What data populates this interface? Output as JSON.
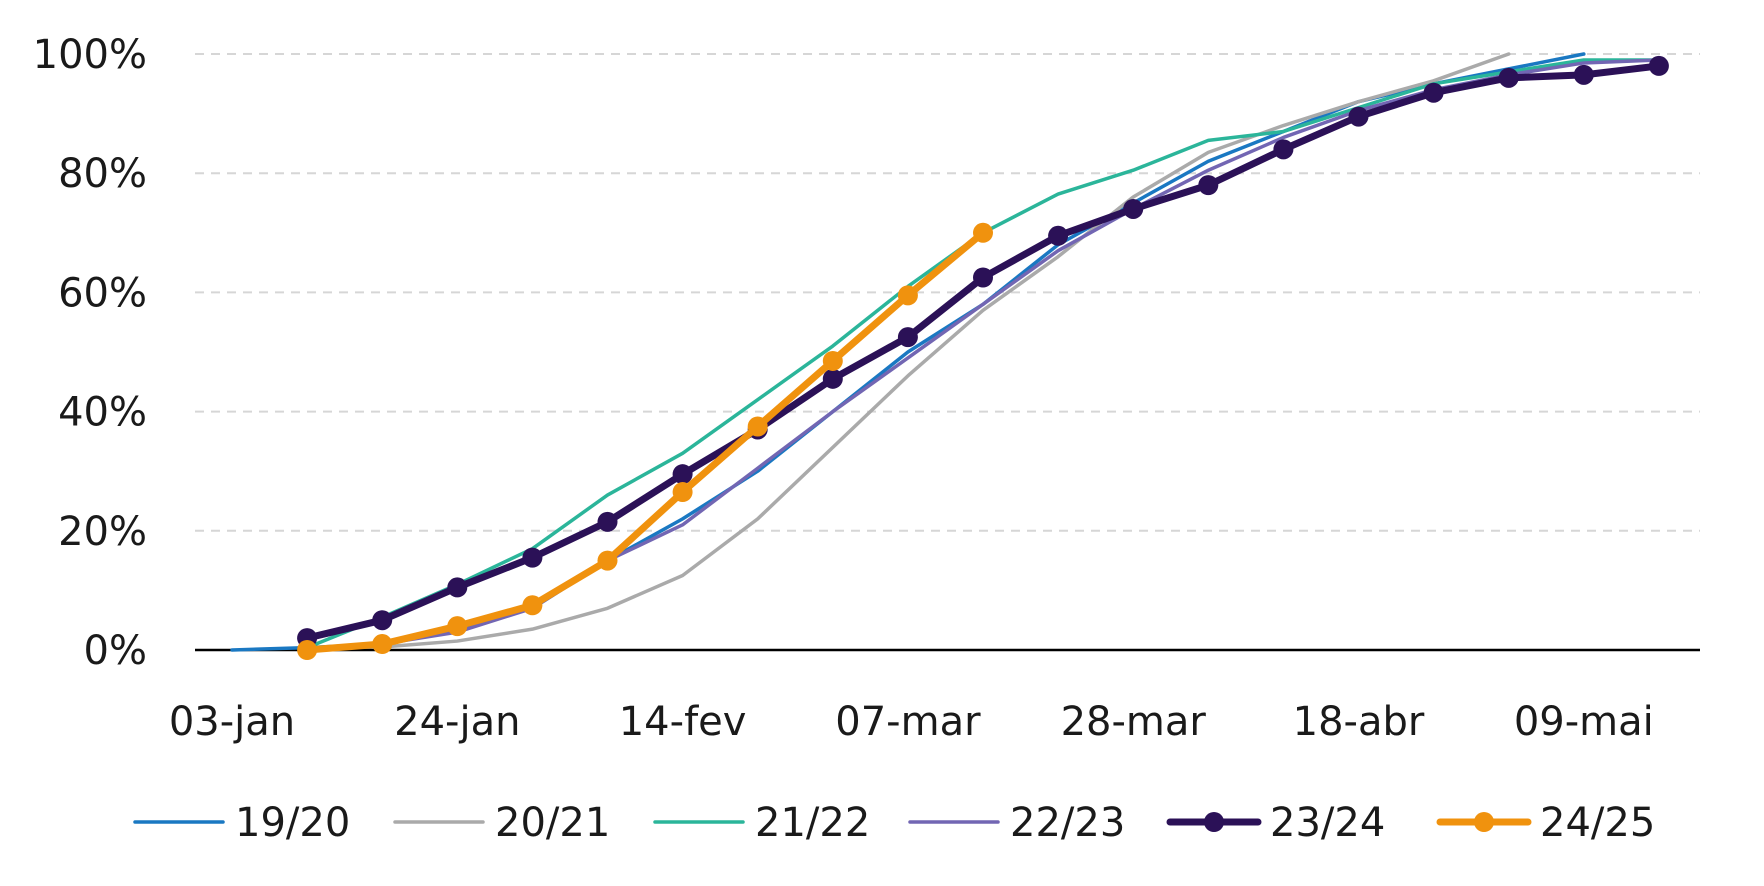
{
  "chart_data": {
    "type": "line",
    "title": "",
    "xlabel": "",
    "ylabel": "",
    "x_ticks": [
      "03-jan",
      "24-jan",
      "14-fev",
      "07-mar",
      "28-mar",
      "18-abr",
      "09-mai"
    ],
    "y_ticks": [
      "0%",
      "20%",
      "40%",
      "60%",
      "80%",
      "100%"
    ],
    "ylim": [
      0,
      100
    ],
    "x_unit": "week index (0 = 03-jan, weekly steps)",
    "xlim": [
      0,
      19.2
    ],
    "grid": "horizontal dashed",
    "legend_position": "bottom",
    "series": [
      {
        "name": "19/20",
        "color": "#1a78c2",
        "markers": false,
        "points": [
          [
            0,
            0
          ],
          [
            1,
            0.4
          ],
          [
            2,
            1
          ],
          [
            3,
            3.5
          ],
          [
            4,
            7
          ],
          [
            5,
            15
          ],
          [
            6,
            22
          ],
          [
            7,
            30
          ],
          [
            8,
            40
          ],
          [
            9,
            50
          ],
          [
            10,
            58
          ],
          [
            11,
            68
          ],
          [
            12,
            75
          ],
          [
            13,
            82
          ],
          [
            14,
            87
          ],
          [
            15,
            92
          ],
          [
            16,
            95
          ],
          [
            17,
            97.5
          ],
          [
            18,
            100
          ]
        ]
      },
      {
        "name": "20/21",
        "color": "#aaaaaa",
        "markers": false,
        "points": [
          [
            2,
            0.5
          ],
          [
            3,
            1.5
          ],
          [
            4,
            3.5
          ],
          [
            5,
            7
          ],
          [
            6,
            12.5
          ],
          [
            7,
            22
          ],
          [
            8,
            34
          ],
          [
            9,
            46
          ],
          [
            10,
            57
          ],
          [
            11,
            66
          ],
          [
            12,
            76
          ],
          [
            13,
            83.5
          ],
          [
            14,
            88
          ],
          [
            15,
            92
          ],
          [
            16,
            95.5
          ],
          [
            17,
            100
          ]
        ]
      },
      {
        "name": "21/22",
        "color": "#2bb59a",
        "markers": false,
        "points": [
          [
            1,
            0.4
          ],
          [
            2,
            5.5
          ],
          [
            3,
            11
          ],
          [
            4,
            17
          ],
          [
            5,
            26
          ],
          [
            6,
            33
          ],
          [
            7,
            42
          ],
          [
            8,
            51
          ],
          [
            9,
            61
          ],
          [
            10,
            70
          ],
          [
            11,
            76.5
          ],
          [
            12,
            80.5
          ],
          [
            13,
            85.5
          ],
          [
            14,
            87
          ],
          [
            15,
            91
          ],
          [
            16,
            95
          ],
          [
            17,
            97
          ],
          [
            18,
            99
          ],
          [
            19,
            99
          ]
        ]
      },
      {
        "name": "22/23",
        "color": "#7266b3",
        "markers": false,
        "points": [
          [
            1,
            0
          ],
          [
            2,
            1
          ],
          [
            3,
            3
          ],
          [
            4,
            7
          ],
          [
            5,
            15
          ],
          [
            6,
            21
          ],
          [
            7,
            30.5
          ],
          [
            8,
            40
          ],
          [
            9,
            49
          ],
          [
            10,
            58
          ],
          [
            11,
            67
          ],
          [
            12,
            74
          ],
          [
            13,
            80.5
          ],
          [
            14,
            86
          ],
          [
            15,
            90.5
          ],
          [
            16,
            94
          ],
          [
            17,
            96.5
          ],
          [
            18,
            98.5
          ],
          [
            19,
            99
          ]
        ]
      },
      {
        "name": "23/24",
        "color": "#2b1157",
        "markers": true,
        "points": [
          [
            1,
            2
          ],
          [
            2,
            5
          ],
          [
            3,
            10.5
          ],
          [
            4,
            15.5
          ],
          [
            5,
            21.5
          ],
          [
            6,
            29.5
          ],
          [
            7,
            37
          ],
          [
            8,
            45.5
          ],
          [
            9,
            52.5
          ],
          [
            10,
            62.5
          ],
          [
            11,
            69.5
          ],
          [
            12,
            74
          ],
          [
            13,
            78
          ],
          [
            14,
            84
          ],
          [
            15,
            89.5
          ],
          [
            16,
            93.5
          ],
          [
            17,
            96
          ],
          [
            18,
            96.5
          ],
          [
            19,
            98
          ]
        ]
      },
      {
        "name": "24/25",
        "color": "#f0920e",
        "markers": true,
        "points": [
          [
            1,
            0
          ],
          [
            2,
            1
          ],
          [
            3,
            4
          ],
          [
            4,
            7.5
          ],
          [
            5,
            15
          ],
          [
            6,
            26.5
          ],
          [
            7,
            37.5
          ],
          [
            8,
            48.5
          ],
          [
            9,
            59.5
          ],
          [
            10,
            70
          ]
        ]
      }
    ]
  }
}
